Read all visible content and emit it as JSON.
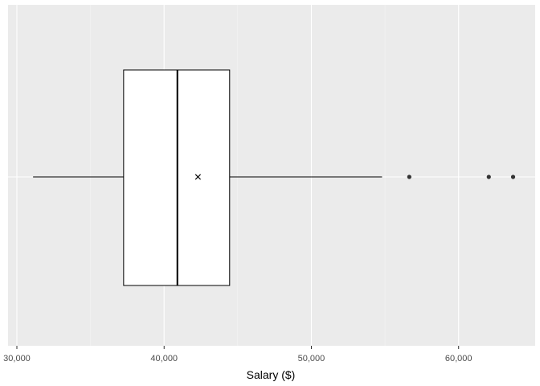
{
  "chart_data": {
    "type": "boxplot",
    "orientation": "horizontal",
    "title": "",
    "xlabel": "Salary ($)",
    "ylabel": "",
    "xlim": [
      29400,
      65200
    ],
    "x_ticks": [
      30000,
      40000,
      50000,
      60000
    ],
    "x_tick_labels": [
      "30,000",
      "40,000",
      "50,000",
      "60,000"
    ],
    "x_minor_ticks": [
      35000,
      45000,
      55000
    ],
    "grid": true,
    "box": {
      "whisker_low": 31100,
      "q1": 37250,
      "median": 40900,
      "mean": 42300,
      "q3": 44450,
      "whisker_high": 54800,
      "outliers": [
        56650,
        62050,
        63700
      ]
    },
    "colors": {
      "panel_background": "#ebebeb",
      "grid_major": "#ffffff",
      "grid_minor": "#f5f5f5",
      "box_fill": "#ffffff",
      "box_stroke": "#000000",
      "outlier": "#333333",
      "tick_label": "#4d4d4d"
    }
  }
}
